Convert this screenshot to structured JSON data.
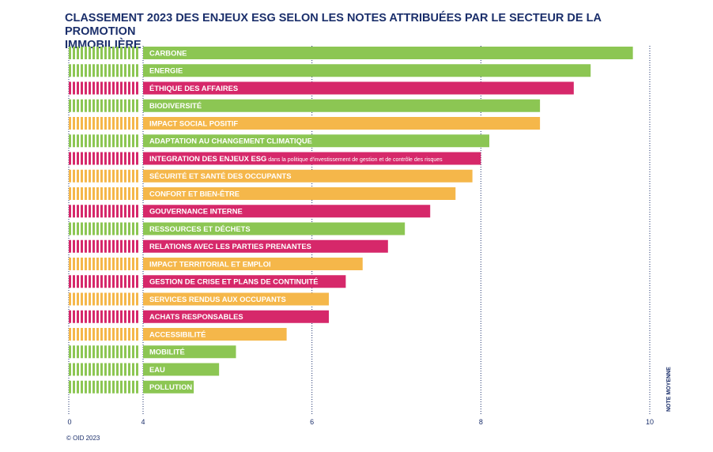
{
  "title_lines": [
    "CLASSEMENT 2023 DES ENJEUX ESG SELON LES NOTES ATTRIBUÉES PAR LE SECTEUR DE LA PROMOTION",
    "IMMOBILIÈRE"
  ],
  "copyright": "© OID 2023",
  "colors": {
    "green": "#8cc653",
    "magenta": "#d6286a",
    "orange": "#f5b74a",
    "navy": "#1b2f6b"
  },
  "chart_data": {
    "type": "bar",
    "orientation": "horizontal",
    "axis_break": "0 to 4 shown as striped segment",
    "xlim": [
      4,
      10
    ],
    "xticks": [
      "0",
      "4",
      "6",
      "8",
      "10"
    ],
    "xlabel": "NOTE MOYENNE",
    "grid": "dotted vertical lines at 4, 6, 8, 10",
    "categories": [
      {
        "label": "CARBONE",
        "value": 9.8,
        "color": "green"
      },
      {
        "label": "ENERGIE",
        "value": 9.3,
        "color": "green"
      },
      {
        "label": "ÉTHIQUE DES AFFAIRES",
        "value": 9.1,
        "color": "magenta"
      },
      {
        "label": "BIODIVERSITÉ",
        "value": 8.7,
        "color": "green"
      },
      {
        "label": "IMPACT SOCIAL POSITIF",
        "value": 8.7,
        "color": "orange"
      },
      {
        "label": "ADAPTATION AU CHANGEMENT CLIMATIQUE",
        "value": 8.1,
        "color": "green"
      },
      {
        "label": "INTEGRATION DES ENJEUX ESG",
        "label_suffix": "dans la politique d'investissement de gestion et de contrôle des risques",
        "value": 8.0,
        "color": "magenta"
      },
      {
        "label": "SÉCURITÉ ET SANTÉ DES OCCUPANTS",
        "value": 7.9,
        "color": "orange"
      },
      {
        "label": "CONFORT ET BIEN-ÊTRE",
        "value": 7.7,
        "color": "orange"
      },
      {
        "label": "GOUVERNANCE INTERNE",
        "value": 7.4,
        "color": "magenta"
      },
      {
        "label": "RESSOURCES ET DÉCHETS",
        "value": 7.1,
        "color": "green"
      },
      {
        "label": "RELATIONS AVEC LES PARTIES PRENANTES",
        "value": 6.9,
        "color": "magenta"
      },
      {
        "label": "IMPACT TERRITORIAL ET EMPLOI",
        "value": 6.6,
        "color": "orange"
      },
      {
        "label": "GESTION DE CRISE ET PLANS DE CONTINUITÉ",
        "value": 6.4,
        "color": "magenta"
      },
      {
        "label": "SERVICES RENDUS AUX OCCUPANTS",
        "value": 6.2,
        "color": "orange"
      },
      {
        "label": "ACHATS RESPONSABLES",
        "value": 6.2,
        "color": "magenta"
      },
      {
        "label": "ACCESSIBILITÉ",
        "value": 5.7,
        "color": "orange"
      },
      {
        "label": "MOBILITÉ",
        "value": 5.1,
        "color": "green"
      },
      {
        "label": "EAU",
        "value": 4.9,
        "color": "green"
      },
      {
        "label": "POLLUTION",
        "value": 4.6,
        "color": "green"
      }
    ]
  }
}
